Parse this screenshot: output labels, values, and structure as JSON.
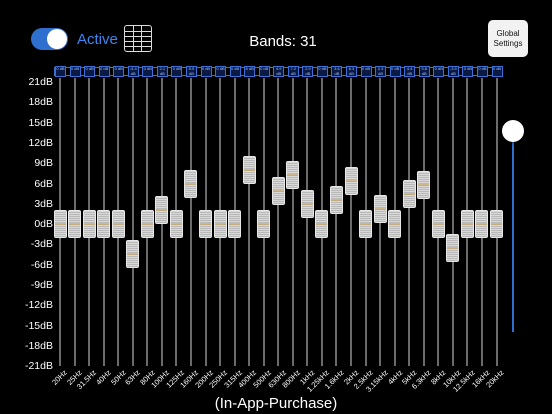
{
  "header": {
    "active_label": "Active",
    "active_on": true,
    "bands_label": "Bands:",
    "bands_value": "31",
    "global_settings_line1": "Global",
    "global_settings_line2": "Settings"
  },
  "db_scale": [
    "21dB",
    "18dB",
    "15dB",
    "12dB",
    "9dB",
    "6dB",
    "3dB",
    "0dB",
    "-3dB",
    "-6dB",
    "-9dB",
    "-12dB",
    "-15dB",
    "-18dB",
    "-21dB"
  ],
  "bands": [
    {
      "label": "20Hz",
      "gain": 0
    },
    {
      "label": "25Hz",
      "gain": 0
    },
    {
      "label": "31.5Hz",
      "gain": 0
    },
    {
      "label": "40Hz",
      "gain": 0
    },
    {
      "label": "50Hz",
      "gain": 0
    },
    {
      "label": "63Hz",
      "gain": -4.4
    },
    {
      "label": "80Hz",
      "gain": 0
    },
    {
      "label": "100Hz",
      "gain": 2.1
    },
    {
      "label": "125Hz",
      "gain": 0
    },
    {
      "label": "160Hz",
      "gain": 5.9
    },
    {
      "label": "200Hz",
      "gain": 0
    },
    {
      "label": "250Hz",
      "gain": 0
    },
    {
      "label": "315Hz",
      "gain": 0
    },
    {
      "label": "400Hz",
      "gain": 8
    },
    {
      "label": "500Hz",
      "gain": 0
    },
    {
      "label": "630Hz",
      "gain": 4.9
    },
    {
      "label": "800Hz",
      "gain": 7.2
    },
    {
      "label": "1kHz",
      "gain": 2.9
    },
    {
      "label": "1.25kHz",
      "gain": 0
    },
    {
      "label": "1.6kHz",
      "gain": 3.6
    },
    {
      "label": "2kHz",
      "gain": 6.3
    },
    {
      "label": "2.5kHz",
      "gain": 0
    },
    {
      "label": "3.15kHz",
      "gain": 2.3
    },
    {
      "label": "4kHz",
      "gain": 0
    },
    {
      "label": "5kHz",
      "gain": 4.4
    },
    {
      "label": "6.3kHz",
      "gain": 5.8
    },
    {
      "label": "8kHz",
      "gain": 0
    },
    {
      "label": "10kHz",
      "gain": -3.5
    },
    {
      "label": "12.5kHz",
      "gain": 0
    },
    {
      "label": "16kHz",
      "gain": 0
    },
    {
      "label": "20kHz",
      "gain": 0
    }
  ],
  "preamp": {
    "level": 0.95
  },
  "footer": {
    "text": "(In-App-Purchase)"
  }
}
